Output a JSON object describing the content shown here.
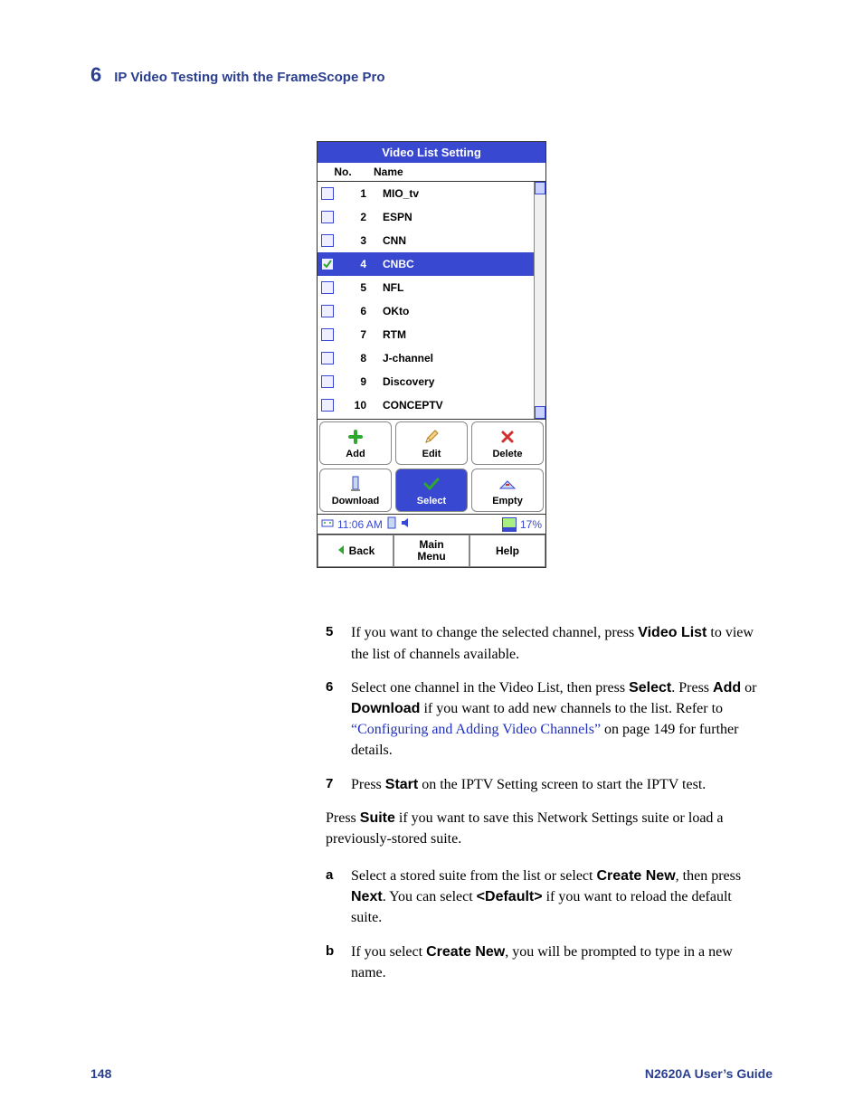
{
  "header": {
    "chapter_number": "6",
    "chapter_title": "IP Video Testing with the FrameScope Pro"
  },
  "device": {
    "title": "Video List Setting",
    "columns": {
      "no": "No.",
      "name": "Name"
    },
    "rows": [
      {
        "no": "1",
        "name": "MIO_tv",
        "checked": false,
        "selected": false
      },
      {
        "no": "2",
        "name": "ESPN",
        "checked": false,
        "selected": false
      },
      {
        "no": "3",
        "name": "CNN",
        "checked": false,
        "selected": false
      },
      {
        "no": "4",
        "name": "CNBC",
        "checked": true,
        "selected": true
      },
      {
        "no": "5",
        "name": "NFL",
        "checked": false,
        "selected": false
      },
      {
        "no": "6",
        "name": "OKto",
        "checked": false,
        "selected": false
      },
      {
        "no": "7",
        "name": "RTM",
        "checked": false,
        "selected": false
      },
      {
        "no": "8",
        "name": "J-channel",
        "checked": false,
        "selected": false
      },
      {
        "no": "9",
        "name": "Discovery",
        "checked": false,
        "selected": false
      },
      {
        "no": "10",
        "name": "CONCEPTV",
        "checked": false,
        "selected": false
      }
    ],
    "buttons": {
      "add": "Add",
      "edit": "Edit",
      "delete": "Delete",
      "download": "Download",
      "select": "Select",
      "empty": "Empty"
    },
    "status": {
      "time": "11:06 AM",
      "battery": "17%"
    },
    "nav": {
      "back": "Back",
      "main_menu": "Main\nMenu",
      "help": "Help"
    },
    "colors": {
      "brand_blue": "#3848d0",
      "green": "#2fa82f",
      "red": "#d03030"
    }
  },
  "body": {
    "step5_num": "5",
    "step5_a": "If you want to change the selected channel, press ",
    "step5_bold": "Video List",
    "step5_b": " to view the list of channels available.",
    "step6_num": "6",
    "step6_a": "Select one channel in the Video List, then press ",
    "step6_bold1": "Select",
    "step6_b": ". Press ",
    "step6_bold2": "Add",
    "step6_c": " or ",
    "step6_bold3": "Download",
    "step6_d": " if you want to add new channels to the list. Refer to ",
    "step6_link": "“Configuring and Adding Video Channels”",
    "step6_e": " on page 149 for further details.",
    "step7_num": "7",
    "step7_a": "Press ",
    "step7_bold": "Start",
    "step7_b": " on the IPTV Setting screen to start the IPTV test.",
    "para_a": "Press ",
    "para_bold": "Suite",
    "para_b": " if you want to save this Network Settings suite or load a previously-stored suite.",
    "stepa_num": "a",
    "stepa_a": "Select a stored suite from the list or select ",
    "stepa_bold1": "Create New",
    "stepa_b": ", then press ",
    "stepa_bold2": "Next",
    "stepa_c": ". You can select ",
    "stepa_bold3": "<Default>",
    "stepa_d": " if you want to reload the default suite.",
    "stepb_num": "b",
    "stepb_a": "If you select ",
    "stepb_bold": "Create New",
    "stepb_b": ", you will be prompted to type in a new name."
  },
  "footer": {
    "page": "148",
    "doc": "N2620A User’s Guide"
  }
}
